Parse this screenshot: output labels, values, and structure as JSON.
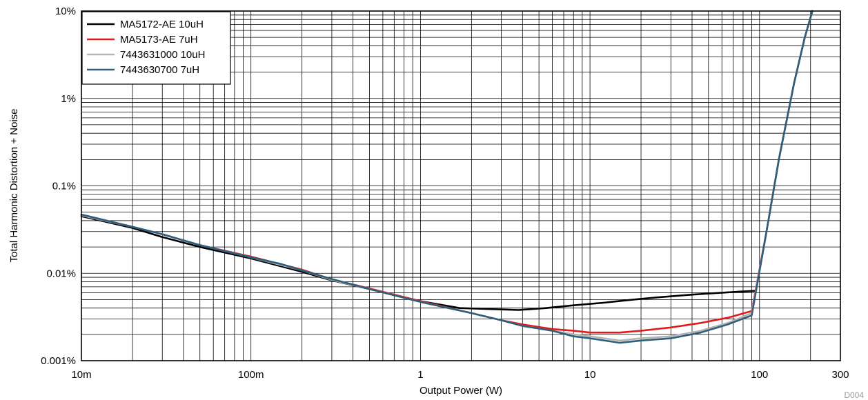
{
  "chart_data": {
    "type": "line",
    "xlabel": "Output Power (W)",
    "ylabel": "Total Harmonic Distortion + Noise",
    "xscale": "log",
    "yscale": "log",
    "xlim": [
      0.01,
      300
    ],
    "ylim": [
      0.001,
      10
    ],
    "x_ticks": [
      {
        "value": 0.01,
        "label": "10m"
      },
      {
        "value": 0.1,
        "label": "100m"
      },
      {
        "value": 1,
        "label": "1"
      },
      {
        "value": 10,
        "label": "10"
      },
      {
        "value": 100,
        "label": "100"
      },
      {
        "value": 300,
        "label": "300"
      }
    ],
    "y_ticks": [
      {
        "value": 0.001,
        "label": "0.001%"
      },
      {
        "value": 0.01,
        "label": "0.01%"
      },
      {
        "value": 0.1,
        "label": "0.1%"
      },
      {
        "value": 1,
        "label": "1%"
      },
      {
        "value": 10,
        "label": "10%"
      }
    ],
    "grid": true,
    "legend_position": "top-left",
    "figure_id": "D004",
    "series": [
      {
        "name": "MA5172-AE 10uH",
        "color": "#000000",
        "points": [
          [
            0.01,
            0.045
          ],
          [
            0.02,
            0.033
          ],
          [
            0.03,
            0.026
          ],
          [
            0.05,
            0.02
          ],
          [
            0.1,
            0.0148
          ],
          [
            0.2,
            0.0104
          ],
          [
            0.3,
            0.0083
          ],
          [
            0.5,
            0.0066
          ],
          [
            1,
            0.0048
          ],
          [
            1.7,
            0.004
          ],
          [
            2.5,
            0.0039
          ],
          [
            3.8,
            0.0038
          ],
          [
            5.5,
            0.004
          ],
          [
            8,
            0.0043
          ],
          [
            12,
            0.0046
          ],
          [
            18,
            0.005
          ],
          [
            25,
            0.0053
          ],
          [
            40,
            0.0057
          ],
          [
            60,
            0.006
          ],
          [
            80,
            0.0062
          ],
          [
            95,
            0.0063
          ],
          [
            110,
            0.03
          ],
          [
            130,
            0.2
          ],
          [
            160,
            1.5
          ],
          [
            185,
            5
          ],
          [
            205,
            10
          ]
        ]
      },
      {
        "name": "MA5173-AE 7uH",
        "color": "#e31a1c",
        "points": [
          [
            0.01,
            0.046
          ],
          [
            0.02,
            0.034
          ],
          [
            0.03,
            0.028
          ],
          [
            0.05,
            0.021
          ],
          [
            0.1,
            0.0155
          ],
          [
            0.2,
            0.011
          ],
          [
            0.3,
            0.0085
          ],
          [
            0.5,
            0.0067
          ],
          [
            1,
            0.0048
          ],
          [
            2,
            0.0035
          ],
          [
            3,
            0.0029
          ],
          [
            4,
            0.0026
          ],
          [
            6,
            0.0023
          ],
          [
            8,
            0.0022
          ],
          [
            10,
            0.0021
          ],
          [
            15,
            0.0021
          ],
          [
            20,
            0.0022
          ],
          [
            30,
            0.0024
          ],
          [
            45,
            0.0027
          ],
          [
            65,
            0.0031
          ],
          [
            90,
            0.0037
          ],
          [
            110,
            0.03
          ],
          [
            130,
            0.2
          ],
          [
            160,
            1.5
          ],
          [
            185,
            5
          ],
          [
            205,
            10
          ]
        ]
      },
      {
        "name": "7443631000 10uH",
        "color": "#b4b4b4",
        "points": [
          [
            0.01,
            0.046
          ],
          [
            0.02,
            0.034
          ],
          [
            0.03,
            0.028
          ],
          [
            0.05,
            0.021
          ],
          [
            0.1,
            0.0152
          ],
          [
            0.2,
            0.0108
          ],
          [
            0.3,
            0.0084
          ],
          [
            0.5,
            0.0066
          ],
          [
            1,
            0.0047
          ],
          [
            2,
            0.0035
          ],
          [
            3,
            0.0029
          ],
          [
            4,
            0.0025
          ],
          [
            6,
            0.0022
          ],
          [
            8,
            0.002
          ],
          [
            10,
            0.0019
          ],
          [
            15,
            0.0017
          ],
          [
            20,
            0.0018
          ],
          [
            30,
            0.0019
          ],
          [
            45,
            0.0022
          ],
          [
            65,
            0.0027
          ],
          [
            90,
            0.0035
          ],
          [
            110,
            0.03
          ],
          [
            130,
            0.2
          ],
          [
            160,
            1.5
          ],
          [
            185,
            5
          ],
          [
            205,
            10
          ]
        ]
      },
      {
        "name": "7443630700 7uH",
        "color": "#2e5f7a",
        "points": [
          [
            0.01,
            0.047
          ],
          [
            0.02,
            0.034
          ],
          [
            0.03,
            0.028
          ],
          [
            0.05,
            0.021
          ],
          [
            0.1,
            0.0152
          ],
          [
            0.15,
            0.0128
          ],
          [
            0.2,
            0.0108
          ],
          [
            0.3,
            0.0086
          ],
          [
            0.5,
            0.0066
          ],
          [
            1,
            0.0047
          ],
          [
            2,
            0.0035
          ],
          [
            3,
            0.0029
          ],
          [
            4,
            0.0025
          ],
          [
            6,
            0.0022
          ],
          [
            8,
            0.0019
          ],
          [
            10,
            0.0018
          ],
          [
            15,
            0.0016
          ],
          [
            20,
            0.0017
          ],
          [
            30,
            0.0018
          ],
          [
            45,
            0.0021
          ],
          [
            65,
            0.0026
          ],
          [
            90,
            0.0033
          ],
          [
            110,
            0.03
          ],
          [
            130,
            0.2
          ],
          [
            160,
            1.5
          ],
          [
            185,
            5
          ],
          [
            205,
            10
          ]
        ]
      }
    ]
  }
}
